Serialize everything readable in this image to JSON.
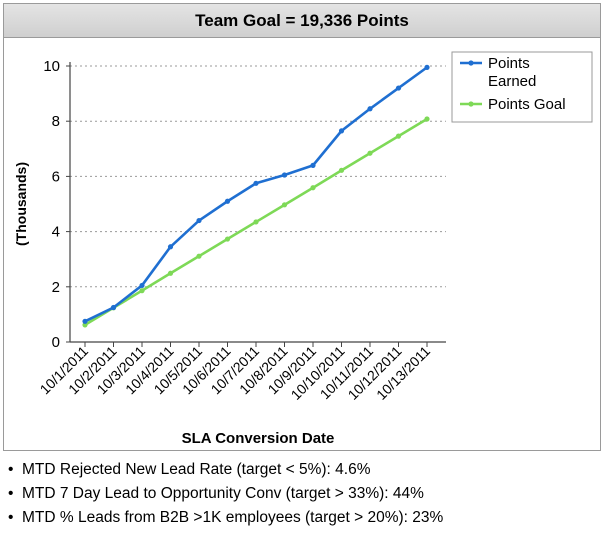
{
  "chart_data": {
    "type": "line",
    "title": "Team Goal = 19,336 Points",
    "xlabel": "SLA Conversion Date",
    "ylabel": "(Thousands)",
    "categories": [
      "10/1/2011",
      "10/2/2011",
      "10/3/2011",
      "10/4/2011",
      "10/5/2011",
      "10/6/2011",
      "10/7/2011",
      "10/8/2011",
      "10/9/2011",
      "10/10/2011",
      "10/11/2011",
      "10/12/2011",
      "10/13/2011"
    ],
    "ylim": [
      0,
      10
    ],
    "yticks": [
      0,
      2,
      4,
      6,
      8,
      10
    ],
    "grid": "horizontal dotted",
    "legend_position": "top-right",
    "series": [
      {
        "name": "Points Earned",
        "color": "#1f6fd1",
        "values": [
          0.75,
          1.25,
          2.05,
          3.45,
          4.4,
          5.1,
          5.75,
          6.05,
          6.4,
          7.65,
          8.45,
          9.2,
          9.95
        ]
      },
      {
        "name": "Points Goal",
        "color": "#7ed957",
        "values": [
          0.62,
          1.24,
          1.86,
          2.49,
          3.11,
          3.73,
          4.35,
          4.97,
          5.59,
          6.22,
          6.84,
          7.46,
          8.08
        ]
      }
    ]
  },
  "bullets": [
    "MTD Rejected New Lead Rate (target < 5%): 4.6%",
    "MTD 7 Day Lead to Opportunity Conv (target > 33%): 44%",
    "MTD % Leads from B2B >1K employees (target > 20%): 23%"
  ],
  "bullet_symbol": "•"
}
